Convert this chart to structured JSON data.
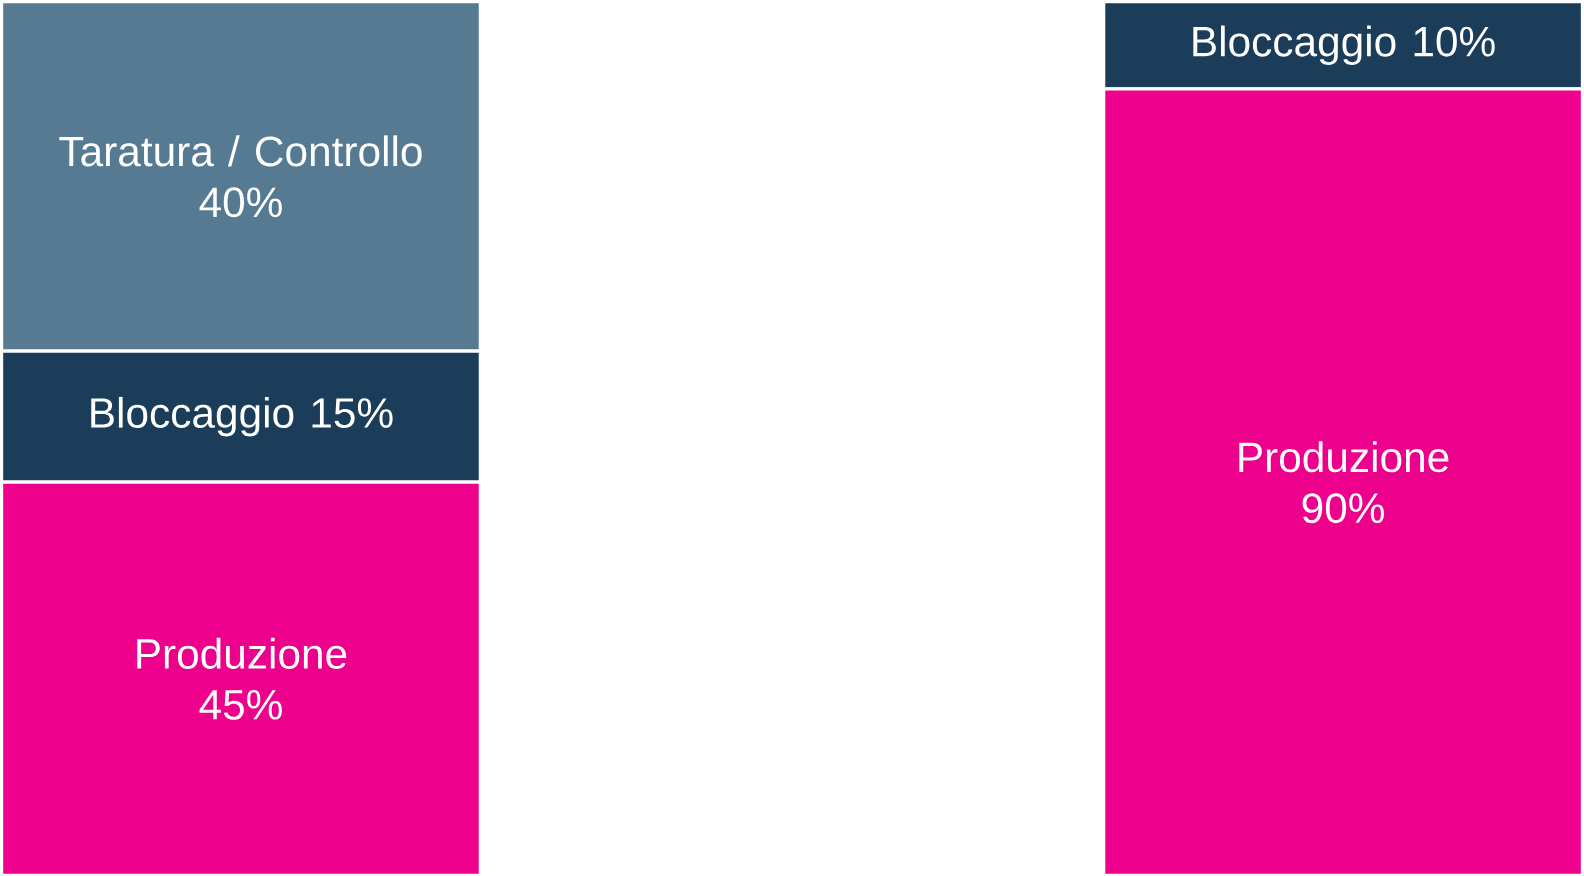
{
  "chart_data": {
    "type": "bar",
    "stacked": true,
    "categories": [
      null,
      null
    ],
    "series": [
      {
        "name": "Produzione",
        "color": "#ec008c",
        "values": [
          45,
          90
        ],
        "value_labels": [
          "45%",
          "90%"
        ]
      },
      {
        "name": "Bloccaggio",
        "color": "#1b3d5a",
        "values": [
          15,
          10
        ],
        "value_labels": [
          "15%",
          "10%"
        ]
      },
      {
        "name": "Taratura / Controllo",
        "color": "#557a92",
        "values": [
          40,
          null
        ],
        "value_labels": [
          "40%",
          null
        ]
      }
    ]
  }
}
